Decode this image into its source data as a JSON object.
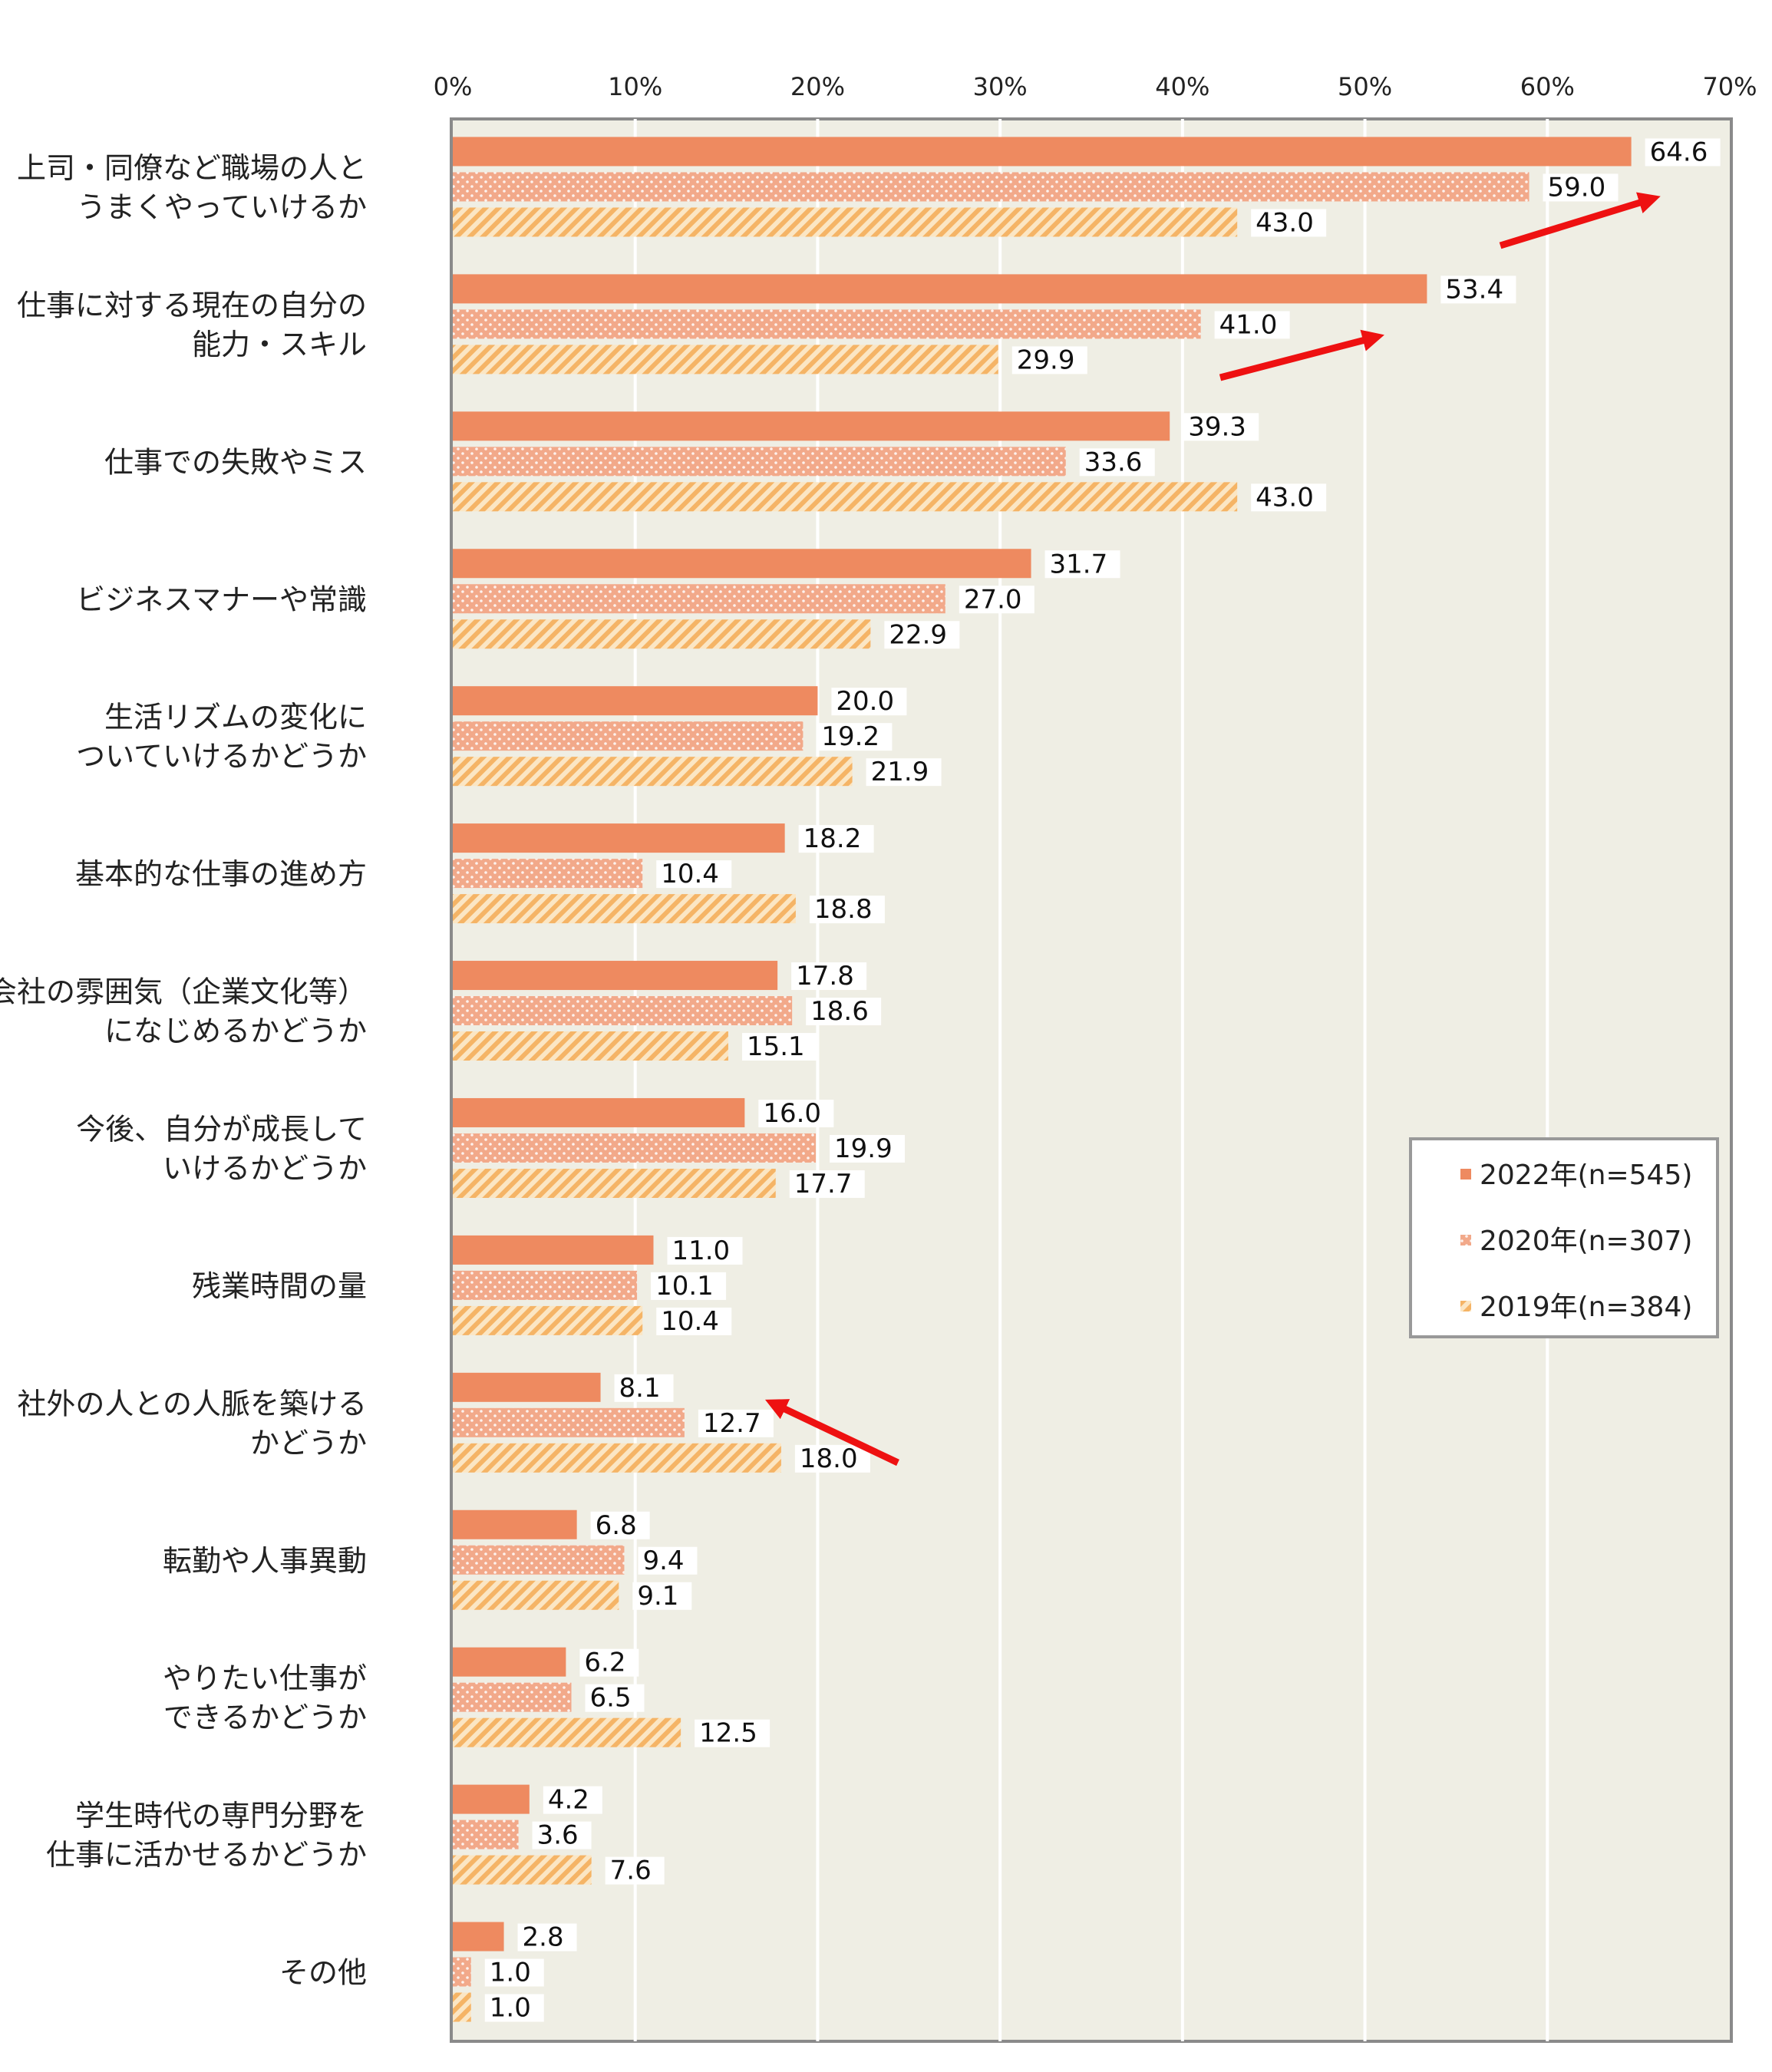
{
  "chart_data": {
    "type": "bar",
    "orientation": "horizontal",
    "xlim": [
      0,
      70
    ],
    "ticks": [
      "0%",
      "10%",
      "20%",
      "30%",
      "40%",
      "50%",
      "60%",
      "70%"
    ],
    "tick_values": [
      0,
      10,
      20,
      30,
      40,
      50,
      60,
      70
    ],
    "grid": true,
    "legend_position": "right",
    "categories": [
      [
        "上司・同僚など職場の人と",
        "うまくやっていけるか"
      ],
      [
        "仕事に対する現在の自分の",
        "能力・スキル"
      ],
      [
        "仕事での失敗やミス"
      ],
      [
        "ビジネスマナーや常識"
      ],
      [
        "生活リズムの変化に",
        "ついていけるかどうか"
      ],
      [
        "基本的な仕事の進め方"
      ],
      [
        "会社の雰囲気（企業文化等）",
        "になじめるかどうか"
      ],
      [
        "今後、自分が成長して",
        "いけるかどうか"
      ],
      [
        "残業時間の量"
      ],
      [
        "社外の人との人脈を築ける",
        "かどうか"
      ],
      [
        "転勤や人事異動"
      ],
      [
        "やりたい仕事が",
        "できるかどうか"
      ],
      [
        "学生時代の専門分野を",
        "仕事に活かせるかどうか"
      ],
      [
        "その他"
      ]
    ],
    "series": [
      {
        "name": "2022年(n=545)",
        "color": "#ee8a60",
        "pattern": "solid",
        "values": [
          64.6,
          53.4,
          39.3,
          31.7,
          20.0,
          18.2,
          17.8,
          16.0,
          11.0,
          8.1,
          6.8,
          6.2,
          4.2,
          2.8
        ],
        "labels": [
          "64.6",
          "53.4",
          "39.3",
          "31.7",
          "20.0",
          "18.2",
          "17.8",
          "16.0",
          "11.0",
          "8.1",
          "6.8",
          "6.2",
          "4.2",
          "2.8"
        ]
      },
      {
        "name": "2020年(n=307)",
        "color": "#f2a98a",
        "pattern": "dots",
        "values": [
          59.0,
          41.0,
          33.6,
          27.0,
          19.2,
          10.4,
          18.6,
          19.9,
          10.1,
          12.7,
          9.4,
          6.5,
          3.6,
          1.0
        ],
        "labels": [
          "59.0",
          "41.0",
          "33.6",
          "27.0",
          "19.2",
          "10.4",
          "18.6",
          "19.9",
          "10.1",
          "12.7",
          "9.4",
          "6.5",
          "3.6",
          "1.0"
        ]
      },
      {
        "name": "2019年(n=384)",
        "color": "#f7c07a",
        "pattern": "hatch",
        "values": [
          43.0,
          29.9,
          43.0,
          22.9,
          21.9,
          18.8,
          15.1,
          17.7,
          10.4,
          18.0,
          9.1,
          12.5,
          7.6,
          1.0
        ],
        "labels": [
          "43.0",
          "29.9",
          "43.0",
          "22.9",
          "21.9",
          "18.8",
          "15.1",
          "17.7",
          "10.4",
          "18.0",
          "9.1",
          "12.5",
          "7.6",
          "1.0"
        ]
      }
    ],
    "annotations": [
      {
        "type": "arrow",
        "color": "#ee1111",
        "direction": "up-right",
        "category_index": 0
      },
      {
        "type": "arrow",
        "color": "#ee1111",
        "direction": "up-right",
        "category_index": 1
      },
      {
        "type": "arrow",
        "color": "#ee1111",
        "direction": "up-left",
        "category_index": 9
      }
    ]
  }
}
